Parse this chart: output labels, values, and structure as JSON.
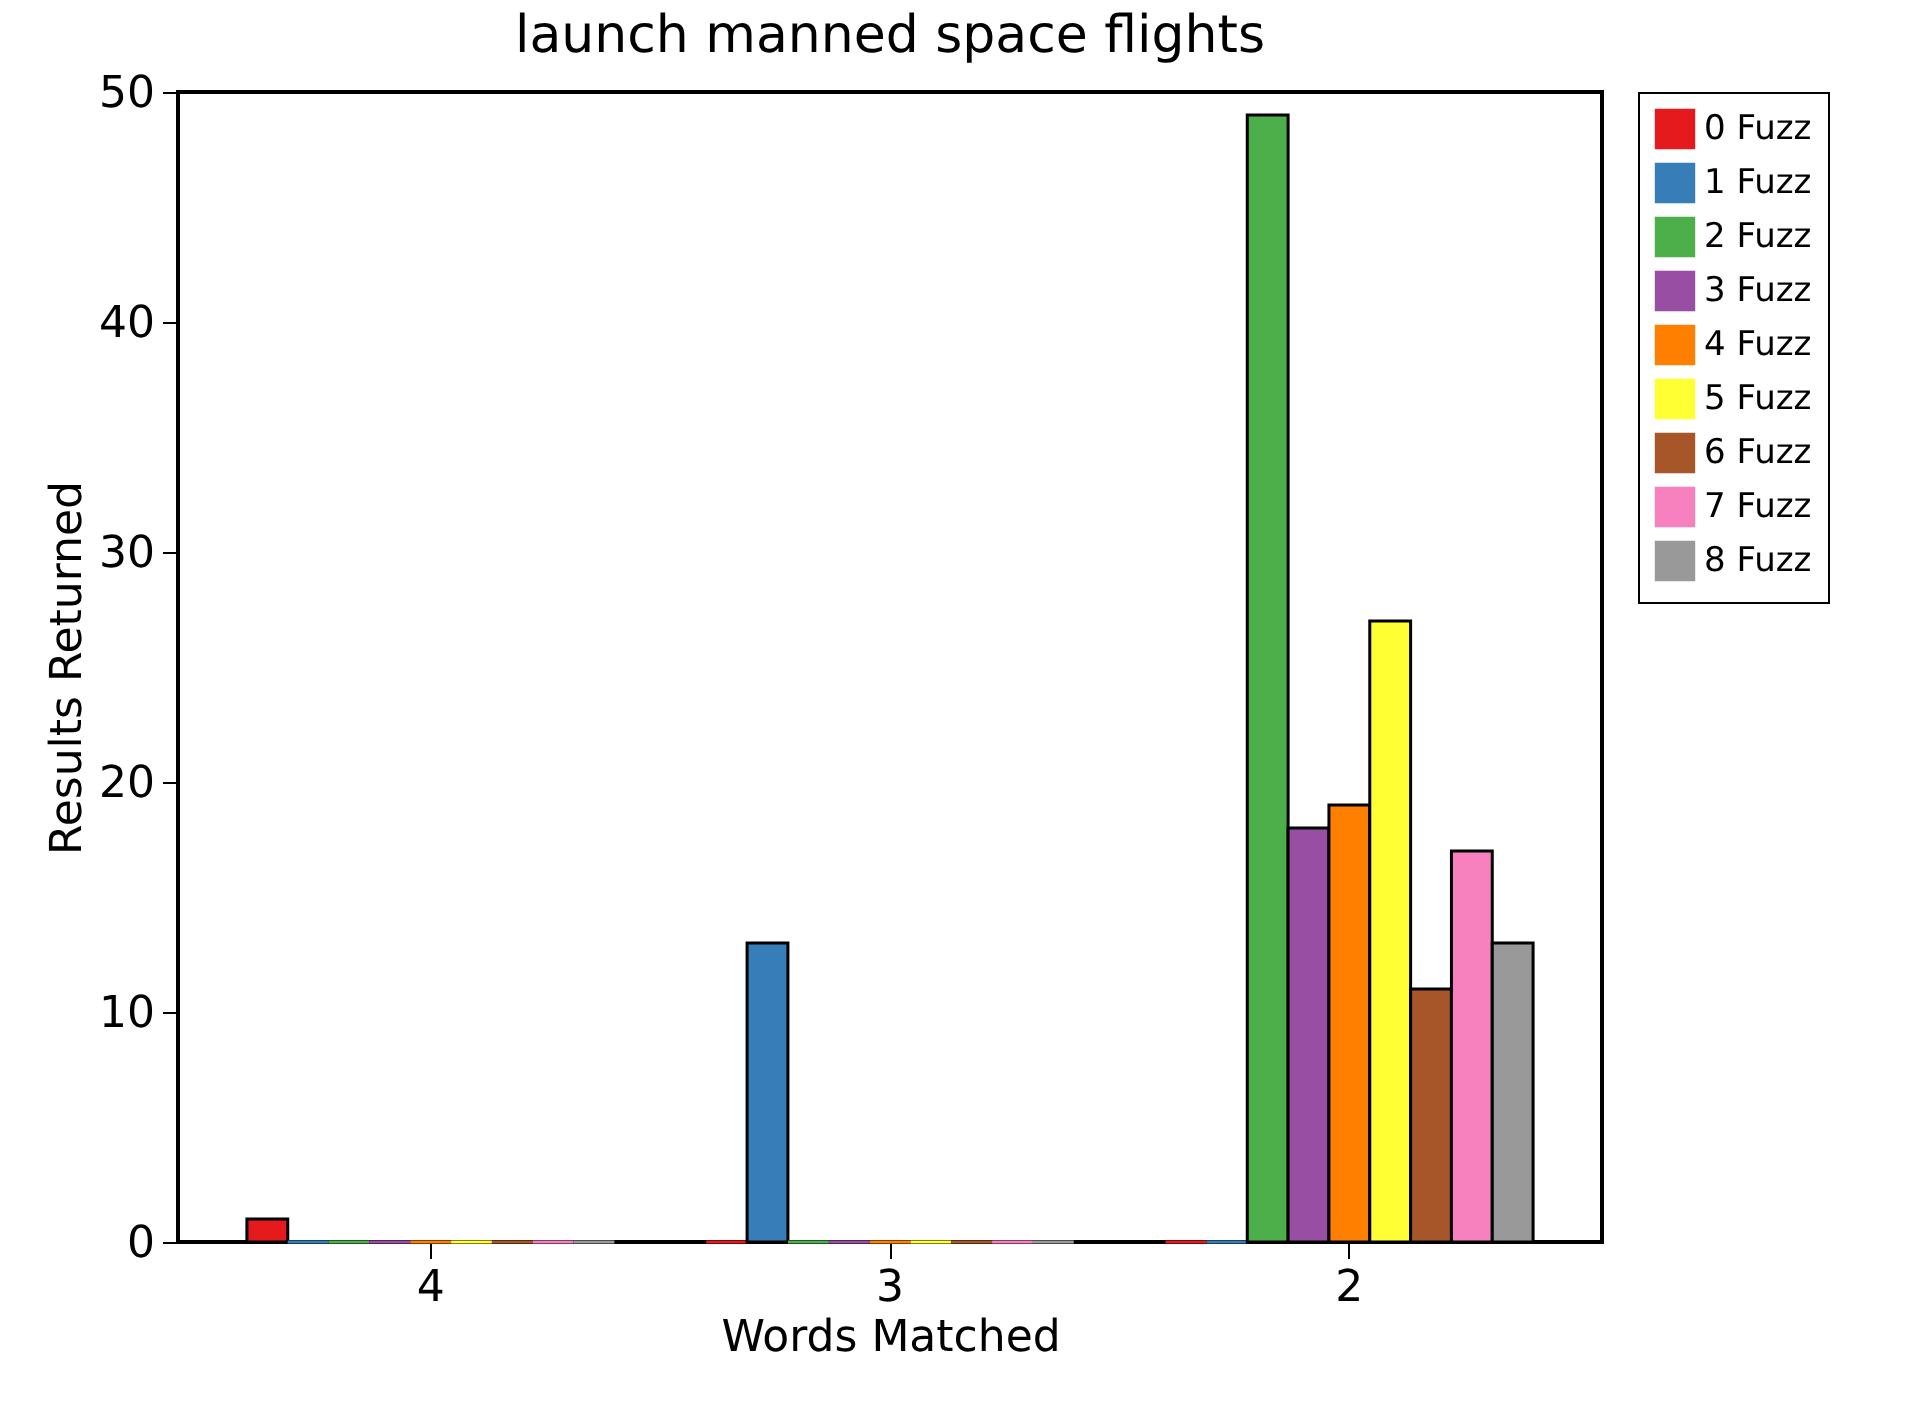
{
  "chart_data": {
    "type": "bar",
    "title": "launch manned space flights",
    "xlabel": "Words Matched",
    "ylabel": "Results Returned",
    "categories": [
      "4",
      "3",
      "2"
    ],
    "series": [
      {
        "name": "0 Fuzz",
        "color": "#e41a1c",
        "values": [
          1,
          0,
          0
        ]
      },
      {
        "name": "1 Fuzz",
        "color": "#377eb8",
        "values": [
          0,
          13,
          0
        ]
      },
      {
        "name": "2 Fuzz",
        "color": "#4daf4a",
        "values": [
          0,
          0,
          49
        ]
      },
      {
        "name": "3 Fuzz",
        "color": "#984ea3",
        "values": [
          0,
          0,
          18
        ]
      },
      {
        "name": "4 Fuzz",
        "color": "#ff7f00",
        "values": [
          0,
          0,
          19
        ]
      },
      {
        "name": "5 Fuzz",
        "color": "#ffff33",
        "values": [
          0,
          0,
          27
        ]
      },
      {
        "name": "6 Fuzz",
        "color": "#a65628",
        "values": [
          0,
          0,
          11
        ]
      },
      {
        "name": "7 Fuzz",
        "color": "#f781bf",
        "values": [
          0,
          0,
          17
        ]
      },
      {
        "name": "8 Fuzz",
        "color": "#999999",
        "values": [
          0,
          0,
          13
        ]
      }
    ],
    "ylim": [
      0,
      50
    ],
    "yticks": [
      0,
      10,
      20,
      30,
      40,
      50
    ],
    "grid": false,
    "legend": "top right"
  }
}
